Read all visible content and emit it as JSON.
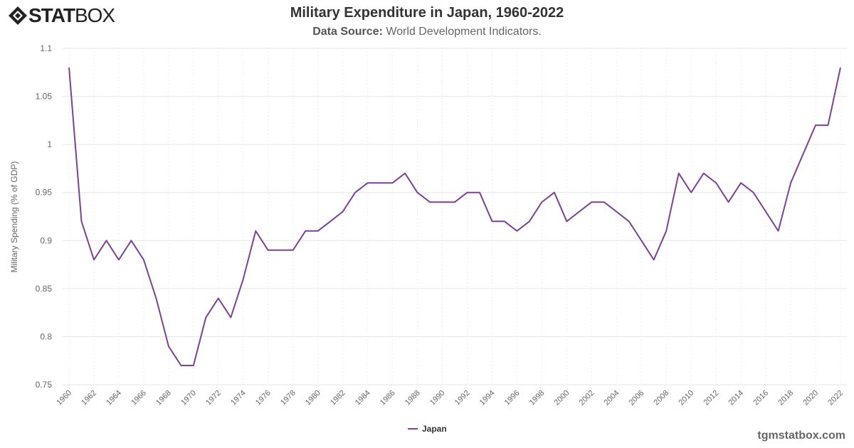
{
  "logo": {
    "text_bold": "STAT",
    "text_light": "BOX"
  },
  "header": {
    "title": "Military Expenditure in Japan, 1960-2022",
    "source_label": "Data Source:",
    "source_value": "World Development Indicators."
  },
  "footer": {
    "site": "tgmstatbox.com"
  },
  "chart_data": {
    "type": "line",
    "title": "Military Expenditure in Japan, 1960-2022",
    "xlabel": "",
    "ylabel": "Military Spending (% of GDP)",
    "ylim": [
      0.75,
      1.1
    ],
    "yticks": [
      "0.75",
      "0.8",
      "0.85",
      "0.9",
      "0.95",
      "1",
      "1.05",
      "1.1"
    ],
    "xticks": [
      "1960",
      "1962",
      "1964",
      "1966",
      "1968",
      "1970",
      "1972",
      "1974",
      "1976",
      "1978",
      "1980",
      "1982",
      "1984",
      "1986",
      "1988",
      "1990",
      "1992",
      "1994",
      "1996",
      "1998",
      "2000",
      "2002",
      "2004",
      "2006",
      "2008",
      "2010",
      "2012",
      "2014",
      "2016",
      "2018",
      "2020",
      "2022"
    ],
    "grid": true,
    "legend": "bottom-center",
    "color": "#7d4196",
    "series": [
      {
        "name": "Japan",
        "x": [
          1960,
          1961,
          1962,
          1963,
          1964,
          1965,
          1966,
          1967,
          1968,
          1969,
          1970,
          1971,
          1972,
          1973,
          1974,
          1975,
          1976,
          1977,
          1978,
          1979,
          1980,
          1981,
          1982,
          1983,
          1984,
          1985,
          1986,
          1987,
          1988,
          1989,
          1990,
          1991,
          1992,
          1993,
          1994,
          1995,
          1996,
          1997,
          1998,
          1999,
          2000,
          2001,
          2002,
          2003,
          2004,
          2005,
          2006,
          2007,
          2008,
          2009,
          2010,
          2011,
          2012,
          2013,
          2014,
          2015,
          2016,
          2017,
          2018,
          2019,
          2020,
          2021,
          2022
        ],
        "values": [
          1.08,
          0.92,
          0.88,
          0.9,
          0.88,
          0.9,
          0.88,
          0.84,
          0.79,
          0.77,
          0.77,
          0.82,
          0.84,
          0.82,
          0.86,
          0.91,
          0.89,
          0.89,
          0.89,
          0.91,
          0.91,
          0.92,
          0.93,
          0.95,
          0.96,
          0.96,
          0.96,
          0.97,
          0.95,
          0.94,
          0.94,
          0.94,
          0.95,
          0.95,
          0.92,
          0.92,
          0.91,
          0.92,
          0.94,
          0.95,
          0.92,
          0.93,
          0.94,
          0.94,
          0.93,
          0.92,
          0.9,
          0.88,
          0.91,
          0.97,
          0.95,
          0.97,
          0.96,
          0.94,
          0.96,
          0.95,
          0.93,
          0.91,
          0.96,
          0.99,
          1.02,
          1.02,
          1.08
        ]
      }
    ]
  }
}
